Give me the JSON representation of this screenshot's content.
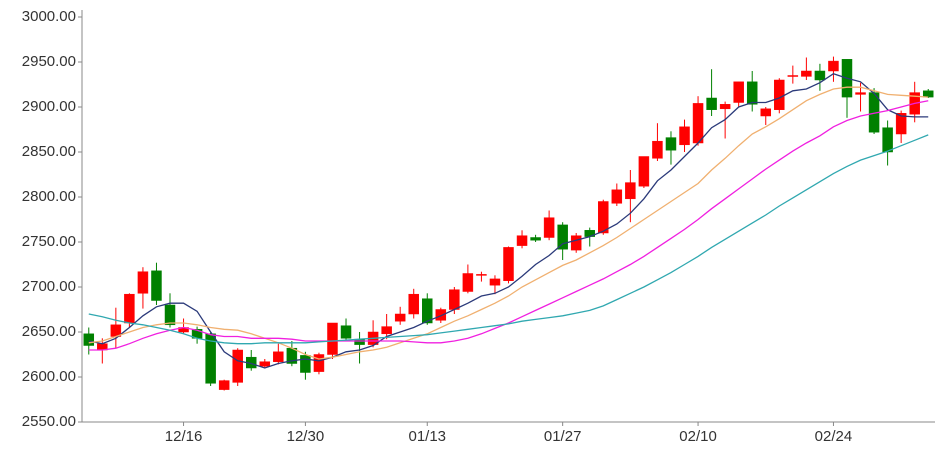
{
  "chart_data": {
    "type": "candlestick",
    "categories": [
      null,
      null,
      null,
      null,
      null,
      null,
      null,
      "12/16",
      null,
      null,
      null,
      null,
      null,
      null,
      null,
      null,
      "12/30",
      null,
      null,
      null,
      null,
      null,
      null,
      null,
      null,
      "01/13",
      null,
      null,
      null,
      null,
      null,
      null,
      null,
      null,
      null,
      "01/27",
      null,
      null,
      null,
      null,
      null,
      null,
      null,
      null,
      null,
      "02/10",
      null,
      null,
      null,
      null,
      null,
      null,
      null,
      null,
      null,
      "02/24",
      null,
      null,
      null,
      null,
      null,
      null,
      null
    ],
    "open": [
      2648,
      2630,
      2645,
      2660,
      2693,
      2718,
      2680,
      2650,
      2653,
      2648,
      2586,
      2594,
      2622,
      2612,
      2617,
      2632,
      2624,
      2606,
      2625,
      2657,
      2642,
      2636,
      2648,
      2662,
      2670,
      2687,
      2663,
      2675,
      2695,
      2713,
      2702,
      2707,
      2746,
      2755,
      2755,
      2769,
      2741,
      2763,
      2760,
      2793,
      2798,
      2812,
      2843,
      2866,
      2858,
      2860,
      2910,
      2898,
      2905,
      2928,
      2890,
      2897,
      2934,
      2934,
      2940,
      2940,
      2953,
      2914,
      2916,
      2877,
      2870,
      2892,
      2918
    ],
    "high": [
      2655,
      2643,
      2677,
      2693,
      2722,
      2727,
      2693,
      2665,
      2656,
      2650,
      2597,
      2632,
      2630,
      2620,
      2637,
      2640,
      2628,
      2627,
      2660,
      2665,
      2650,
      2663,
      2670,
      2678,
      2698,
      2693,
      2677,
      2700,
      2725,
      2717,
      2713,
      2745,
      2763,
      2758,
      2785,
      2772,
      2760,
      2766,
      2797,
      2815,
      2830,
      2845,
      2882,
      2873,
      2886,
      2912,
      2942,
      2906,
      2928,
      2940,
      2900,
      2932,
      2946,
      2955,
      2948,
      2956,
      2953,
      2927,
      2921,
      2885,
      2896,
      2928,
      2920
    ],
    "low": [
      2625,
      2615,
      2632,
      2655,
      2676,
      2680,
      2655,
      2648,
      2637,
      2590,
      2585,
      2590,
      2607,
      2610,
      2614,
      2612,
      2597,
      2603,
      2620,
      2640,
      2615,
      2633,
      2642,
      2658,
      2665,
      2658,
      2660,
      2670,
      2693,
      2706,
      2692,
      2704,
      2743,
      2750,
      2752,
      2730,
      2738,
      2745,
      2758,
      2790,
      2772,
      2810,
      2840,
      2836,
      2850,
      2857,
      2890,
      2865,
      2900,
      2895,
      2880,
      2893,
      2926,
      2930,
      2918,
      2928,
      2888,
      2895,
      2870,
      2835,
      2860,
      2883,
      2910
    ],
    "close": [
      2635,
      2637,
      2658,
      2692,
      2717,
      2685,
      2658,
      2655,
      2643,
      2593,
      2596,
      2630,
      2610,
      2617,
      2628,
      2615,
      2605,
      2625,
      2660,
      2643,
      2636,
      2650,
      2656,
      2670,
      2692,
      2660,
      2675,
      2697,
      2715,
      2714,
      2709,
      2744,
      2757,
      2752,
      2777,
      2742,
      2757,
      2756,
      2795,
      2808,
      2816,
      2845,
      2862,
      2852,
      2878,
      2904,
      2897,
      2903,
      2928,
      2903,
      2898,
      2930,
      2935,
      2940,
      2930,
      2951,
      2911,
      2916,
      2872,
      2850,
      2893,
      2916,
      2911
    ],
    "up_color": "#ff0000",
    "down_color": "#008000",
    "lines": [
      {
        "color": "#2b3a7a",
        "values": [
          2640,
          2637,
          2643,
          2655,
          2668,
          2678,
          2682,
          2682,
          2673,
          2650,
          2628,
          2618,
          2615,
          2610,
          2615,
          2618,
          2620,
          2618,
          2622,
          2628,
          2630,
          2635,
          2645,
          2650,
          2655,
          2662,
          2668,
          2675,
          2682,
          2690,
          2693,
          2700,
          2712,
          2725,
          2735,
          2748,
          2752,
          2756,
          2762,
          2770,
          2782,
          2798,
          2818,
          2830,
          2845,
          2860,
          2877,
          2886,
          2900,
          2905,
          2905,
          2910,
          2918,
          2920,
          2927,
          2937,
          2932,
          2928,
          2915,
          2897,
          2890,
          2889,
          2889
        ]
      },
      {
        "color": "#f0b070",
        "values": [
          2638,
          2640,
          2645,
          2650,
          2655,
          2658,
          2660,
          2660,
          2658,
          2655,
          2653,
          2652,
          2648,
          2643,
          2638,
          2632,
          2625,
          2620,
          2622,
          2625,
          2628,
          2630,
          2633,
          2638,
          2643,
          2648,
          2655,
          2662,
          2668,
          2675,
          2682,
          2690,
          2700,
          2708,
          2716,
          2724,
          2730,
          2738,
          2746,
          2755,
          2765,
          2775,
          2785,
          2795,
          2805,
          2815,
          2830,
          2843,
          2857,
          2870,
          2878,
          2887,
          2897,
          2907,
          2914,
          2920,
          2922,
          2922,
          2918,
          2914,
          2913,
          2912,
          2911
        ]
      },
      {
        "color": "#f020e0",
        "values": [
          2630,
          2630,
          2632,
          2637,
          2643,
          2648,
          2652,
          2655,
          2652,
          2647,
          2645,
          2645,
          2643,
          2643,
          2643,
          2642,
          2640,
          2640,
          2640,
          2640,
          2640,
          2640,
          2640,
          2640,
          2639,
          2638,
          2638,
          2640,
          2643,
          2648,
          2654,
          2660,
          2667,
          2674,
          2681,
          2688,
          2695,
          2702,
          2709,
          2717,
          2725,
          2734,
          2744,
          2754,
          2764,
          2775,
          2787,
          2798,
          2809,
          2820,
          2831,
          2841,
          2851,
          2860,
          2868,
          2878,
          2885,
          2890,
          2893,
          2896,
          2900,
          2904,
          2907
        ]
      },
      {
        "color": "#30a8b0",
        "values": [
          2670,
          2667,
          2663,
          2660,
          2658,
          2655,
          2652,
          2648,
          2643,
          2640,
          2638,
          2637,
          2637,
          2638,
          2638,
          2638,
          2638,
          2639,
          2640,
          2641,
          2642,
          2643,
          2644,
          2645,
          2646,
          2647,
          2649,
          2651,
          2653,
          2655,
          2657,
          2659,
          2662,
          2664,
          2666,
          2668,
          2671,
          2674,
          2679,
          2686,
          2693,
          2700,
          2708,
          2716,
          2725,
          2734,
          2744,
          2753,
          2762,
          2771,
          2780,
          2790,
          2799,
          2808,
          2817,
          2826,
          2834,
          2841,
          2846,
          2851,
          2857,
          2863,
          2869
        ]
      }
    ],
    "ylim": [
      2550,
      3000
    ],
    "yticks": [
      {
        "value": 2550,
        "label": "2550.00"
      },
      {
        "value": 2600,
        "label": "2600.00"
      },
      {
        "value": 2650,
        "label": "2650.00"
      },
      {
        "value": 2700,
        "label": "2700.00"
      },
      {
        "value": 2750,
        "label": "2750.00"
      },
      {
        "value": 2800,
        "label": "2800.00"
      },
      {
        "value": 2850,
        "label": "2850.00"
      },
      {
        "value": 2900,
        "label": "2900.00"
      },
      {
        "value": 2950,
        "label": "2950.00"
      },
      {
        "value": 3000,
        "label": "3000.00"
      }
    ]
  }
}
